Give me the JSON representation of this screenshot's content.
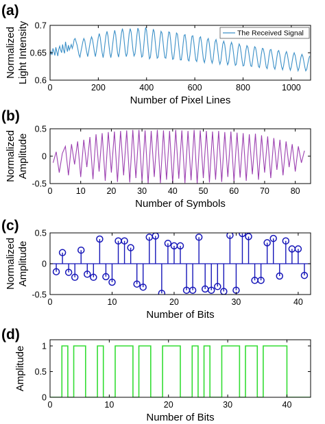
{
  "chart_data": [
    {
      "panel_label": "(a)",
      "type": "line",
      "xlabel": "Number of Pixel Lines",
      "ylabel": [
        "Normalized",
        "Light Intensity"
      ],
      "xlim": [
        0,
        1080
      ],
      "ylim": [
        0.6,
        0.7
      ],
      "xticks": [
        0,
        200,
        400,
        600,
        800,
        1000
      ],
      "yticks": [
        0.6,
        0.65,
        0.7
      ],
      "grid": false,
      "legend": "top-right",
      "color": "#3a8fc7",
      "series": [
        {
          "name": "The Received Signal",
          "x_start": 0,
          "x_step": 4,
          "y": [
            0.645,
            0.652,
            0.646,
            0.658,
            0.652,
            0.645,
            0.66,
            0.652,
            0.644,
            0.656,
            0.662,
            0.655,
            0.65,
            0.665,
            0.655,
            0.649,
            0.67,
            0.66,
            0.652,
            0.664,
            0.655,
            0.66,
            0.665,
            0.658,
            0.664,
            0.674,
            0.676,
            0.67,
            0.664,
            0.655,
            0.646,
            0.642,
            0.652,
            0.661,
            0.67,
            0.676,
            0.672,
            0.661,
            0.651,
            0.643,
            0.652,
            0.663,
            0.673,
            0.679,
            0.674,
            0.663,
            0.651,
            0.643,
            0.653,
            0.666,
            0.678,
            0.685,
            0.678,
            0.663,
            0.65,
            0.641,
            0.652,
            0.668,
            0.682,
            0.689,
            0.681,
            0.664,
            0.649,
            0.641,
            0.651,
            0.667,
            0.682,
            0.691,
            0.683,
            0.665,
            0.649,
            0.642,
            0.653,
            0.671,
            0.686,
            0.694,
            0.686,
            0.668,
            0.651,
            0.643,
            0.649,
            0.667,
            0.685,
            0.694,
            0.688,
            0.671,
            0.654,
            0.644,
            0.648,
            0.663,
            0.682,
            0.695,
            0.69,
            0.673,
            0.655,
            0.642,
            0.644,
            0.66,
            0.681,
            0.696,
            0.691,
            0.673,
            0.653,
            0.639,
            0.642,
            0.659,
            0.68,
            0.693,
            0.688,
            0.67,
            0.652,
            0.64,
            0.642,
            0.658,
            0.677,
            0.689,
            0.686,
            0.671,
            0.654,
            0.641,
            0.64,
            0.654,
            0.674,
            0.688,
            0.687,
            0.672,
            0.653,
            0.638,
            0.639,
            0.653,
            0.672,
            0.686,
            0.684,
            0.669,
            0.651,
            0.637,
            0.637,
            0.65,
            0.668,
            0.682,
            0.683,
            0.67,
            0.652,
            0.637,
            0.635,
            0.647,
            0.665,
            0.68,
            0.681,
            0.669,
            0.652,
            0.637,
            0.634,
            0.644,
            0.662,
            0.677,
            0.679,
            0.668,
            0.652,
            0.637,
            0.632,
            0.641,
            0.658,
            0.673,
            0.676,
            0.667,
            0.651,
            0.637,
            0.631,
            0.638,
            0.655,
            0.67,
            0.674,
            0.666,
            0.651,
            0.636,
            0.629,
            0.635,
            0.651,
            0.666,
            0.671,
            0.665,
            0.651,
            0.636,
            0.628,
            0.632,
            0.647,
            0.663,
            0.669,
            0.664,
            0.651,
            0.636,
            0.627,
            0.629,
            0.643,
            0.659,
            0.666,
            0.662,
            0.65,
            0.636,
            0.626,
            0.627,
            0.64,
            0.655,
            0.663,
            0.66,
            0.649,
            0.636,
            0.626,
            0.625,
            0.637,
            0.652,
            0.661,
            0.659,
            0.649,
            0.636,
            0.625,
            0.623,
            0.634,
            0.648,
            0.658,
            0.657,
            0.648,
            0.636,
            0.624,
            0.621,
            0.631,
            0.645,
            0.655,
            0.656,
            0.647,
            0.636,
            0.624,
            0.62,
            0.628,
            0.641,
            0.652,
            0.654,
            0.647,
            0.635,
            0.624,
            0.619,
            0.626,
            0.638,
            0.648,
            0.652,
            0.646,
            0.635,
            0.624,
            0.618,
            0.624,
            0.635,
            0.645,
            0.65,
            0.645,
            0.635,
            0.624,
            0.617,
            0.622,
            0.632,
            0.642,
            0.647,
            0.643,
            0.634,
            0.624,
            0.617,
            0.62,
            0.629,
            0.638,
            0.644
          ]
        }
      ]
    },
    {
      "panel_label": "(b)",
      "type": "line",
      "xlabel": "Number of Symbols",
      "ylabel": [
        "Normalized",
        "Amplitude"
      ],
      "xlim": [
        0,
        85
      ],
      "ylim": [
        -0.5,
        0.5
      ],
      "xticks": [
        0,
        10,
        20,
        30,
        40,
        50,
        60,
        70,
        80
      ],
      "yticks": [
        -0.5,
        0,
        0.5
      ],
      "grid": false,
      "color": "#9b3fb0",
      "series": [
        {
          "x_start": 1,
          "x_step": 1,
          "y": [
            -0.12,
            0.08,
            -0.3,
            0.05,
            0.18,
            -0.35,
            0.22,
            -0.15,
            0.27,
            -0.38,
            0.3,
            -0.2,
            0.35,
            -0.42,
            0.4,
            -0.28,
            0.42,
            -0.45,
            0.44,
            -0.3,
            0.45,
            -0.47,
            0.46,
            -0.35,
            0.47,
            -0.48,
            0.48,
            -0.4,
            0.48,
            -0.46,
            0.47,
            -0.5,
            0.46,
            -0.38,
            0.48,
            -0.49,
            0.47,
            -0.43,
            0.46,
            -0.5,
            0.48,
            -0.41,
            0.47,
            -0.49,
            0.46,
            -0.44,
            0.48,
            -0.5,
            0.47,
            -0.4,
            0.46,
            -0.48,
            0.45,
            -0.43,
            0.46,
            -0.47,
            0.44,
            -0.38,
            0.45,
            -0.46,
            0.43,
            -0.39,
            0.42,
            -0.45,
            0.4,
            -0.33,
            0.41,
            -0.43,
            0.38,
            -0.3,
            0.36,
            -0.4,
            0.33,
            -0.25,
            0.3,
            -0.35,
            0.27,
            -0.2,
            0.22,
            -0.28,
            0.18,
            -0.12,
            0.1
          ]
        }
      ]
    },
    {
      "panel_label": "(c)",
      "type": "stem",
      "xlabel": "Number of Bits",
      "ylabel": [
        "Normalized",
        "Amplitude"
      ],
      "xlim": [
        0,
        42
      ],
      "ylim": [
        -0.5,
        0.5
      ],
      "xticks": [
        0,
        10,
        20,
        30,
        40
      ],
      "yticks": [
        -0.5,
        0,
        0.5
      ],
      "grid": false,
      "color": "#1515b8",
      "series": [
        {
          "x": [
            1,
            2,
            3,
            4,
            5,
            6,
            7,
            8,
            9,
            10,
            11,
            12,
            13,
            14,
            15,
            16,
            17,
            18,
            19,
            20,
            21,
            22,
            23,
            24,
            25,
            26,
            27,
            28,
            29,
            30,
            31,
            32,
            33,
            34,
            35,
            36,
            37,
            38,
            39,
            40,
            41
          ],
          "y": [
            -0.13,
            0.18,
            -0.14,
            -0.22,
            0.22,
            -0.17,
            -0.22,
            0.4,
            -0.21,
            -0.3,
            0.37,
            0.37,
            0.26,
            -0.33,
            -0.38,
            0.43,
            0.45,
            -0.48,
            0.33,
            0.29,
            0.29,
            -0.43,
            -0.43,
            0.43,
            -0.41,
            -0.43,
            -0.37,
            -0.45,
            0.46,
            -0.43,
            0.49,
            0.44,
            -0.27,
            -0.27,
            0.34,
            0.41,
            -0.2,
            0.37,
            0.24,
            0.24,
            -0.19
          ]
        }
      ]
    },
    {
      "panel_label": "(d)",
      "type": "line",
      "xlabel": "Number of Bits",
      "ylabel": [
        "Amplitude"
      ],
      "xlim": [
        0,
        44
      ],
      "ylim": [
        0,
        1.12
      ],
      "xticks": [
        0,
        10,
        20,
        30,
        40
      ],
      "yticks": [
        0,
        0.5,
        1
      ],
      "grid": false,
      "color": "#33dd33",
      "series": [
        {
          "bits_start": 2,
          "bits": [
            1,
            0,
            1,
            1,
            0,
            0,
            1,
            0,
            0,
            1,
            1,
            1,
            0,
            1,
            1,
            0,
            0,
            1,
            1,
            1,
            0,
            0,
            1,
            0,
            1,
            0,
            0,
            1,
            1,
            1,
            0,
            1,
            1,
            0,
            1,
            1,
            1,
            1,
            0
          ]
        }
      ]
    }
  ]
}
